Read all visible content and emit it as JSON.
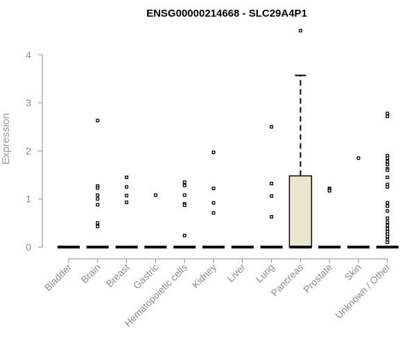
{
  "chart_data": {
    "type": "box",
    "title": "ENSG00000214668 - SLC29A4P1",
    "xlabel": "",
    "ylabel": "Expression",
    "ylim": [
      0,
      4.5
    ],
    "yticks": [
      0,
      1,
      2,
      3,
      4
    ],
    "grid": false,
    "box_fill": "#ebe5cb",
    "categories": [
      "Bladder",
      "Brain",
      "Breast",
      "Gastric",
      "Hematopoietic cells",
      "Kidney",
      "Liver",
      "Lung",
      "Pancreas",
      "Prostate",
      "Skin",
      "Unknown / Other"
    ],
    "boxes": [
      {
        "q1": 0,
        "median": 0,
        "q3": 0,
        "whisker_low": 0,
        "whisker_high": 0,
        "outliers": []
      },
      {
        "q1": 0,
        "median": 0,
        "q3": 0,
        "whisker_low": 0,
        "whisker_high": 0,
        "outliers": [
          2.63,
          1.27,
          1.23,
          1.08,
          1.0,
          0.88,
          0.5,
          0.43
        ]
      },
      {
        "q1": 0,
        "median": 0,
        "q3": 0,
        "whisker_low": 0,
        "whisker_high": 0,
        "outliers": [
          1.45,
          1.25,
          1.07,
          0.93
        ]
      },
      {
        "q1": 0,
        "median": 0,
        "q3": 0,
        "whisker_low": 0,
        "whisker_high": 0,
        "outliers": [
          1.08
        ]
      },
      {
        "q1": 0,
        "median": 0,
        "q3": 0,
        "whisker_low": 0,
        "whisker_high": 0,
        "outliers": [
          1.35,
          1.28,
          1.08,
          0.9,
          0.87,
          0.24
        ]
      },
      {
        "q1": 0,
        "median": 0,
        "q3": 0,
        "whisker_low": 0,
        "whisker_high": 0,
        "outliers": [
          1.97,
          1.22,
          0.92,
          0.71
        ]
      },
      {
        "q1": 0,
        "median": 0,
        "q3": 0,
        "whisker_low": 0,
        "whisker_high": 0,
        "outliers": []
      },
      {
        "q1": 0,
        "median": 0,
        "q3": 0,
        "whisker_low": 0,
        "whisker_high": 0,
        "outliers": [
          2.5,
          1.32,
          1.06,
          0.63
        ]
      },
      {
        "q1": 0,
        "median": 0,
        "q3": 1.48,
        "whisker_low": 0,
        "whisker_high": 3.57,
        "outliers": [
          4.5
        ]
      },
      {
        "q1": 0,
        "median": 0,
        "q3": 0,
        "whisker_low": 0,
        "whisker_high": 0,
        "outliers": [
          1.22,
          1.2,
          1.17
        ]
      },
      {
        "q1": 0,
        "median": 0,
        "q3": 0,
        "whisker_low": 0,
        "whisker_high": 0,
        "outliers": [
          1.85
        ]
      },
      {
        "q1": 0,
        "median": 0,
        "q3": 0,
        "whisker_low": 0,
        "whisker_high": 0,
        "outliers": [
          2.78,
          2.72,
          1.9,
          1.85,
          1.78,
          1.72,
          1.63,
          1.6,
          1.45,
          1.3,
          1.25,
          0.92,
          0.85,
          0.75,
          0.6,
          0.52,
          0.45,
          0.38,
          0.32,
          0.27,
          0.22,
          0.15,
          0.1
        ]
      }
    ]
  }
}
